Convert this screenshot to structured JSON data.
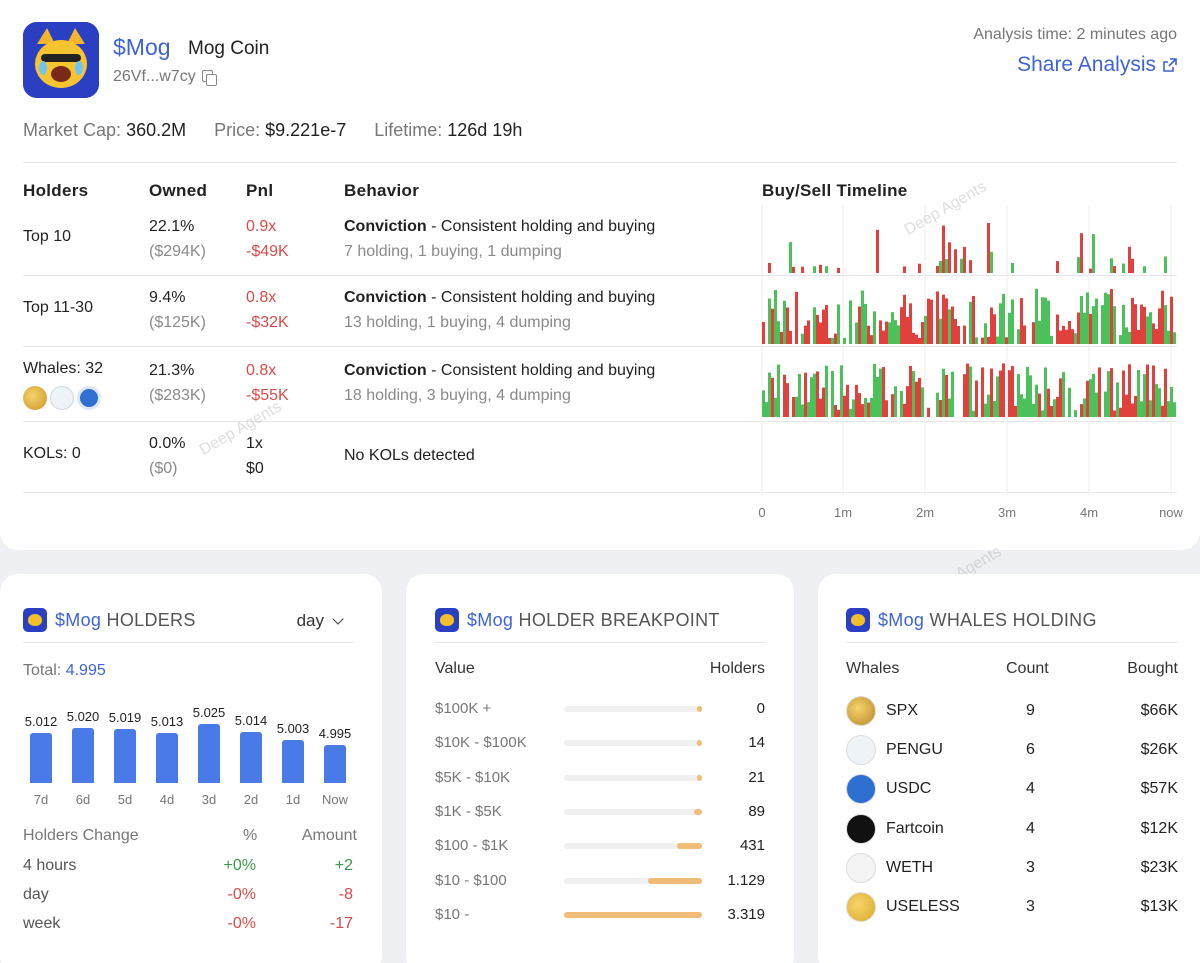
{
  "header": {
    "ticker": "$Mog",
    "name": "Mog Coin",
    "address": "26Vf...w7cy",
    "analysis_time": "Analysis time: 2 minutes ago",
    "share_label": "Share Analysis"
  },
  "stats": {
    "market_cap_label": "Market Cap:",
    "market_cap": "360.2M",
    "price_label": "Price:",
    "price": "$9.221e-7",
    "lifetime_label": "Lifetime:",
    "lifetime": "126d 19h"
  },
  "table": {
    "headers": [
      "Holders",
      "Owned",
      "Pnl",
      "Behavior",
      "Buy/Sell Timeline"
    ],
    "rows": [
      {
        "holders": "Top 10",
        "owned": "22.1%",
        "owned_usd": "($294K)",
        "pnl_x": "0.9x",
        "pnl_usd": "-$49K",
        "behavior_type": "Conviction",
        "behavior_desc": " - Consistent holding and buying",
        "behavior_detail": "7 holding, 1 buying, 1 dumping"
      },
      {
        "holders": "Top 11-30",
        "owned": "9.4%",
        "owned_usd": "($125K)",
        "pnl_x": "0.8x",
        "pnl_usd": "-$32K",
        "behavior_type": "Conviction",
        "behavior_desc": " - Consistent holding and buying",
        "behavior_detail": "13 holding, 1 buying, 4 dumping"
      },
      {
        "holders": "Whales: 32",
        "owned": "21.3%",
        "owned_usd": "($283K)",
        "pnl_x": "0.8x",
        "pnl_usd": "-$55K",
        "behavior_type": "Conviction",
        "behavior_desc": " - Consistent holding and buying",
        "behavior_detail": "18 holding, 3 buying, 4 dumping"
      },
      {
        "holders": "KOLs: 0",
        "owned": "0.0%",
        "owned_usd": "($0)",
        "pnl_x": "1x",
        "pnl_usd": "$0",
        "behavior_type": "",
        "behavior_desc": "",
        "behavior_detail": "No KOLs detected"
      }
    ],
    "timeline_ticks": [
      "0",
      "1m",
      "2m",
      "3m",
      "4m",
      "now"
    ]
  },
  "colors": {
    "accent": "#3e63d6",
    "buy": "#4cc15b",
    "sell": "#e0413d",
    "bar": "#4a7ae8",
    "breakpoint": "#f0bc78",
    "negative": "#d94b4b",
    "positive": "#3a9a4a"
  },
  "watermark": "Deep Agents",
  "holders_card": {
    "ticker": "$Mog",
    "title": "HOLDERS",
    "period": "day",
    "total_label": "Total:",
    "total": "4.995",
    "chart_data": {
      "type": "bar",
      "categories": [
        "7d",
        "6d",
        "5d",
        "4d",
        "3d",
        "2d",
        "1d",
        "Now"
      ],
      "values": [
        5.012,
        5.02,
        5.019,
        5.013,
        5.025,
        5.014,
        5.003,
        4.995
      ],
      "labels": [
        "5.012",
        "5.020",
        "5.019",
        "5.013",
        "5.025",
        "5.014",
        "5.003",
        "4.995"
      ]
    },
    "change_headers": [
      "Holders Change",
      "%",
      "Amount"
    ],
    "changes": [
      {
        "period": "4 hours",
        "pct": "+0%",
        "amount": "+2"
      },
      {
        "period": "day",
        "pct": "-0%",
        "amount": "-8"
      },
      {
        "period": "week",
        "pct": "-0%",
        "amount": "-17"
      }
    ]
  },
  "breakpoint_card": {
    "ticker": "$Mog",
    "title": "HOLDER BREAKPOINT",
    "headers": [
      "Value",
      "Holders"
    ],
    "rows": [
      {
        "range": "$100K +",
        "holders": "0",
        "share": 0.02
      },
      {
        "range": "$10K - $100K",
        "holders": "14",
        "share": 0.03
      },
      {
        "range": "$5K - $10K",
        "holders": "21",
        "share": 0.03
      },
      {
        "range": "$1K - $5K",
        "holders": "89",
        "share": 0.06
      },
      {
        "range": "$100 - $1K",
        "holders": "431",
        "share": 0.18
      },
      {
        "range": "$10 - $100",
        "holders": "1.129",
        "share": 0.39
      },
      {
        "range": "$10 -",
        "holders": "3.319",
        "share": 1.0
      }
    ]
  },
  "whales_card": {
    "ticker": "$Mog",
    "title": "WHALES HOLDING",
    "headers": [
      "Whales",
      "Count",
      "Bought"
    ],
    "rows": [
      {
        "name": "SPX",
        "count": "9",
        "bought": "$66K",
        "icon": "spx-icon"
      },
      {
        "name": "PENGU",
        "count": "6",
        "bought": "$26K",
        "icon": "pengu-icon"
      },
      {
        "name": "USDC",
        "count": "4",
        "bought": "$57K",
        "icon": "usdc-icon"
      },
      {
        "name": "Fartcoin",
        "count": "4",
        "bought": "$12K",
        "icon": "fartcoin-icon"
      },
      {
        "name": "WETH",
        "count": "3",
        "bought": "$23K",
        "icon": "weth-icon"
      },
      {
        "name": "USELESS",
        "count": "3",
        "bought": "$13K",
        "icon": "useless-icon"
      }
    ]
  }
}
